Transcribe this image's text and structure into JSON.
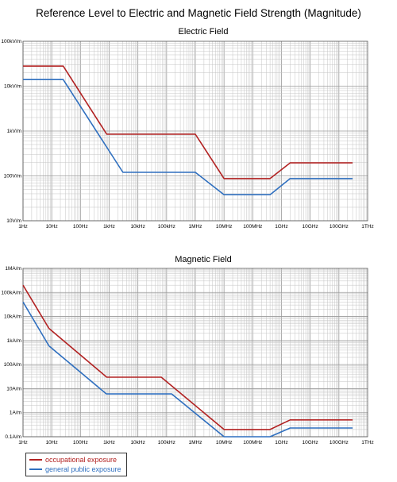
{
  "title": "Reference Level to Electric and Magnetic Field Strength (Magnitude)",
  "colors": {
    "occupational": "#b22222",
    "general_public": "#2f6fbf"
  },
  "legend": [
    {
      "label": "occupational exposure",
      "color": "#b22222"
    },
    {
      "label": "general public exposure",
      "color": "#2f6fbf"
    }
  ],
  "chart_data": [
    {
      "type": "line",
      "title": "Electric Field",
      "x_scale": "log",
      "y_scale": "log",
      "xlim": [
        1,
        1000000000000
      ],
      "ylim": [
        10,
        100000
      ],
      "grid": true,
      "x_ticks": [
        {
          "value": 1,
          "label": "1Hz"
        },
        {
          "value": 10,
          "label": "10Hz"
        },
        {
          "value": 100,
          "label": "100Hz"
        },
        {
          "value": 1000,
          "label": "1kHz"
        },
        {
          "value": 10000,
          "label": "10kHz"
        },
        {
          "value": 100000,
          "label": "100kHz"
        },
        {
          "value": 1000000,
          "label": "1MHz"
        },
        {
          "value": 10000000,
          "label": "10MHz"
        },
        {
          "value": 100000000,
          "label": "100MHz"
        },
        {
          "value": 1000000000,
          "label": "1GHz"
        },
        {
          "value": 10000000000,
          "label": "10GHz"
        },
        {
          "value": 100000000000,
          "label": "100GHz"
        },
        {
          "value": 1000000000000,
          "label": "1THz"
        }
      ],
      "y_ticks": [
        {
          "value": 10,
          "label": "10V/m"
        },
        {
          "value": 100,
          "label": "100V/m"
        },
        {
          "value": 1000,
          "label": "1kV/m"
        },
        {
          "value": 10000,
          "label": "10kV/m"
        },
        {
          "value": 100000,
          "label": "100kV/m"
        }
      ],
      "series": [
        {
          "name": "occupational exposure",
          "color": "#b22222",
          "x": [
            1,
            25,
            820,
            1000000,
            10000000,
            400000000,
            2000000000,
            300000000000
          ],
          "y": [
            28000,
            28000,
            850,
            850,
            87,
            87,
            195,
            195
          ]
        },
        {
          "name": "general public exposure",
          "color": "#2f6fbf",
          "x": [
            1,
            25,
            3000,
            1000000,
            10000000,
            400000000,
            2000000000,
            300000000000
          ],
          "y": [
            14000,
            14000,
            120,
            120,
            38,
            38,
            87,
            87
          ]
        }
      ]
    },
    {
      "type": "line",
      "title": "Magnetic Field",
      "x_scale": "log",
      "y_scale": "log",
      "xlim": [
        1,
        1000000000000
      ],
      "ylim": [
        0.1,
        1000000
      ],
      "grid": true,
      "x_ticks": [
        {
          "value": 1,
          "label": "1Hz"
        },
        {
          "value": 10,
          "label": "10Hz"
        },
        {
          "value": 100,
          "label": "100Hz"
        },
        {
          "value": 1000,
          "label": "1kHz"
        },
        {
          "value": 10000,
          "label": "10kHz"
        },
        {
          "value": 100000,
          "label": "100kHz"
        },
        {
          "value": 1000000,
          "label": "1MHz"
        },
        {
          "value": 10000000,
          "label": "10MHz"
        },
        {
          "value": 100000000,
          "label": "100MHz"
        },
        {
          "value": 1000000000,
          "label": "1GHz"
        },
        {
          "value": 10000000000,
          "label": "10GHz"
        },
        {
          "value": 100000000000,
          "label": "100GHz"
        },
        {
          "value": 1000000000000,
          "label": "1THz"
        }
      ],
      "y_ticks": [
        {
          "value": 0.1,
          "label": "0.1A/m"
        },
        {
          "value": 1,
          "label": "1A/m"
        },
        {
          "value": 10,
          "label": "10A/m"
        },
        {
          "value": 100,
          "label": "100A/m"
        },
        {
          "value": 1000,
          "label": "1kA/m"
        },
        {
          "value": 10000,
          "label": "10kA/m"
        },
        {
          "value": 100000,
          "label": "100kA/m"
        },
        {
          "value": 1000000,
          "label": "1MA/m"
        }
      ],
      "series": [
        {
          "name": "occupational exposure",
          "color": "#b22222",
          "x": [
            1,
            8,
            820,
            65000,
            10000000,
            400000000,
            2000000000,
            300000000000
          ],
          "y": [
            200000,
            3200,
            30,
            30,
            0.2,
            0.2,
            0.5,
            0.5
          ]
        },
        {
          "name": "general public exposure",
          "color": "#2f6fbf",
          "x": [
            1,
            8,
            800,
            150000,
            10000000,
            400000000,
            2000000000,
            300000000000
          ],
          "y": [
            40000,
            600,
            6,
            6,
            0.1,
            0.1,
            0.23,
            0.23
          ]
        }
      ]
    }
  ]
}
